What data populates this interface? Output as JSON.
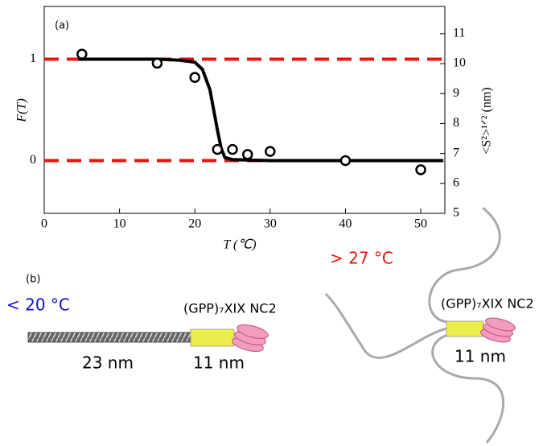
{
  "chart_data": {
    "type": "line",
    "xlabel": "T (℃)",
    "ylabel": "F(T)",
    "y2label": "<S²>¹ᐟ² (nm)",
    "xlim": [
      0,
      53.2
    ],
    "xticks": [
      0,
      10,
      20,
      30,
      40,
      50
    ],
    "ylim": [
      -0.52,
      1.52
    ],
    "yticks": [
      0,
      1
    ],
    "y2lim": [
      5,
      11.91
    ],
    "y2ticks": [
      5,
      6,
      7,
      8,
      9,
      10,
      11
    ],
    "hlines": {
      "values": [
        0,
        1
      ],
      "color": "#e8140f"
    },
    "series": [
      {
        "type": "scatter",
        "color": "#000000",
        "x": [
          5,
          15,
          20,
          23,
          25,
          27,
          30,
          40,
          50
        ],
        "values": [
          1.05,
          0.96,
          0.82,
          0.11,
          0.11,
          0.06,
          0.09,
          0.0,
          -0.09
        ]
      },
      {
        "type": "line",
        "color": "#000000",
        "x": [
          4.5,
          10,
          15,
          18,
          20,
          21,
          22,
          22.5,
          23,
          23.5,
          24,
          25,
          30,
          40,
          53
        ],
        "values": [
          1.0,
          1.0,
          1.0,
          0.99,
          0.97,
          0.9,
          0.7,
          0.5,
          0.3,
          0.12,
          0.03,
          0.01,
          0.0,
          0.0,
          0.0
        ]
      }
    ],
    "annotations": [
      "(a)",
      "(b)",
      "< 20 °C",
      "> 27 °C",
      "(GPP)₇XIX NC2",
      "23 nm",
      "11 nm",
      "(GPP)₇XIX NC2",
      "11 nm"
    ]
  }
}
